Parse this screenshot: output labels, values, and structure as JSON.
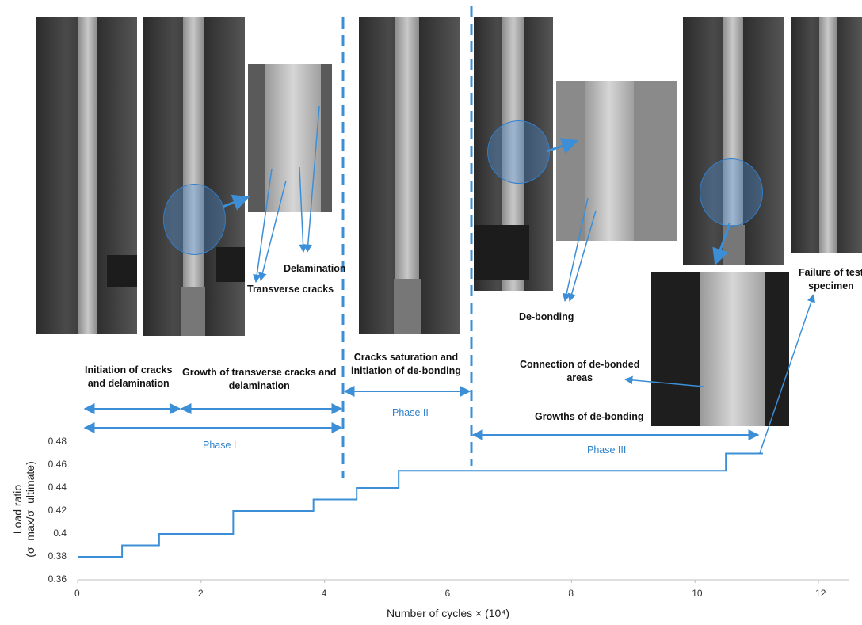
{
  "chart_data": {
    "type": "line",
    "xlabel": "Number of cycles × (10⁴)",
    "ylabel_line1": "Load ratio",
    "ylabel_line2": "(σ_max/σ_ultimate)",
    "xlim": [
      0,
      12.5
    ],
    "ylim": [
      0.36,
      0.48
    ],
    "x_ticks": [
      "0",
      "2",
      "4",
      "6",
      "8",
      "10",
      "12"
    ],
    "y_ticks": [
      "0.36",
      "0.38",
      "0.4",
      "0.42",
      "0.44",
      "0.46",
      "0.48"
    ],
    "series": [
      {
        "step": "post",
        "x": [
          0,
          0.72,
          1.32,
          2.52,
          3.82,
          4.52,
          5.2,
          10.5,
          11.1
        ],
        "y": [
          0.38,
          0.39,
          0.4,
          0.42,
          0.43,
          0.44,
          0.455,
          0.47,
          0.47
        ]
      }
    ],
    "phase_boundaries": [
      4.35,
      6.4
    ],
    "annotations": {
      "initiation": [
        "Initiation of cracks",
        "and delamination"
      ],
      "growth_transverse": [
        "Growth of transverse cracks and",
        "delamination"
      ],
      "cracks_saturation": [
        "Cracks saturation and",
        "initiation of de-bonding"
      ],
      "delamination": "Delamination",
      "transverse_cracks": "Transverse cracks",
      "de_bonding": "De-bonding",
      "connection": [
        "Connection of de-bonded",
        "areas"
      ],
      "growths_debonding": "Growths of de-bonding",
      "failure": [
        "Failure of test",
        "specimen"
      ],
      "phase_1": "Phase I",
      "phase_2": "Phase II",
      "phase_3": "Phase III"
    },
    "colors": {
      "line": "#3c8fd6",
      "phase_text": "#2f82c9",
      "dashed": "#3c8fd6"
    }
  }
}
